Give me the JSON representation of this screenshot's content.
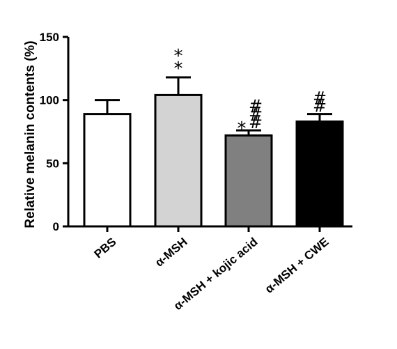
{
  "chart_data": {
    "type": "bar",
    "categories": [
      "PBS",
      "α-MSH",
      "α-MSH + kojic acid",
      "α-MSH + CWE"
    ],
    "values": [
      89,
      104,
      72,
      83
    ],
    "errors": [
      11,
      14,
      4,
      6
    ],
    "bar_colors": [
      "#ffffff",
      "#d3d3d3",
      "#808080",
      "#000000"
    ],
    "significance": [
      {
        "stars": "",
        "hashes": ""
      },
      {
        "stars": "**",
        "hashes": ""
      },
      {
        "stars": "*",
        "hashes": "###"
      },
      {
        "stars": "",
        "hashes": "##"
      }
    ],
    "title": "",
    "xlabel": "",
    "ylabel": "Relative melanin contents (%)",
    "ylim": [
      0,
      150
    ],
    "yticks": [
      0,
      50,
      100,
      150
    ],
    "grid": false
  }
}
